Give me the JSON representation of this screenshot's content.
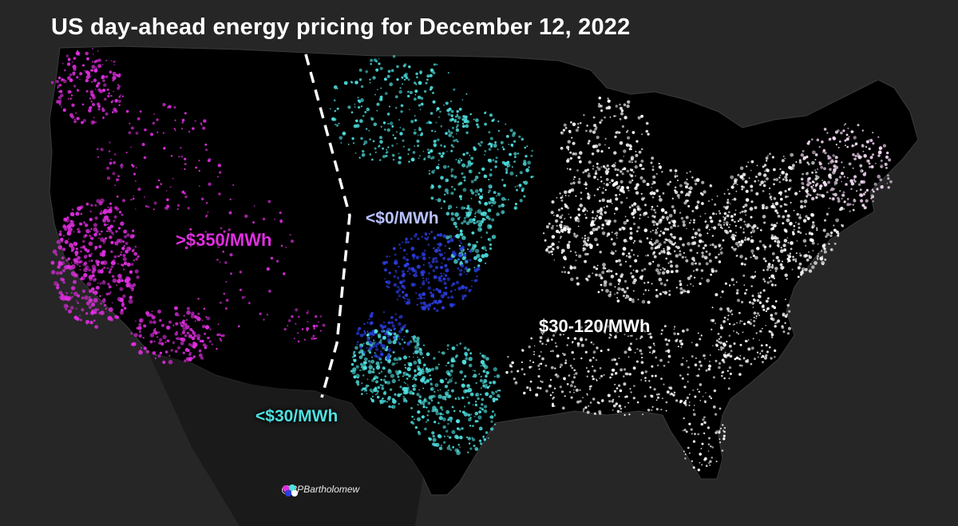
{
  "title": "US day-ahead energy pricing for December 12, 2022",
  "labels": {
    "high": ">$350/MWh",
    "negative": "<$0/MWh",
    "mid": "$30-120/MWh",
    "low": "<$30/MWh"
  },
  "credit": "@BPBartholomew",
  "colors": {
    "background": "#262626",
    "land": "#000000",
    "high": "#e02ee0",
    "negative": "#2b3de0",
    "low": "#4fe0e0",
    "mid": "#ffffff",
    "divider": "#ffffff"
  }
}
